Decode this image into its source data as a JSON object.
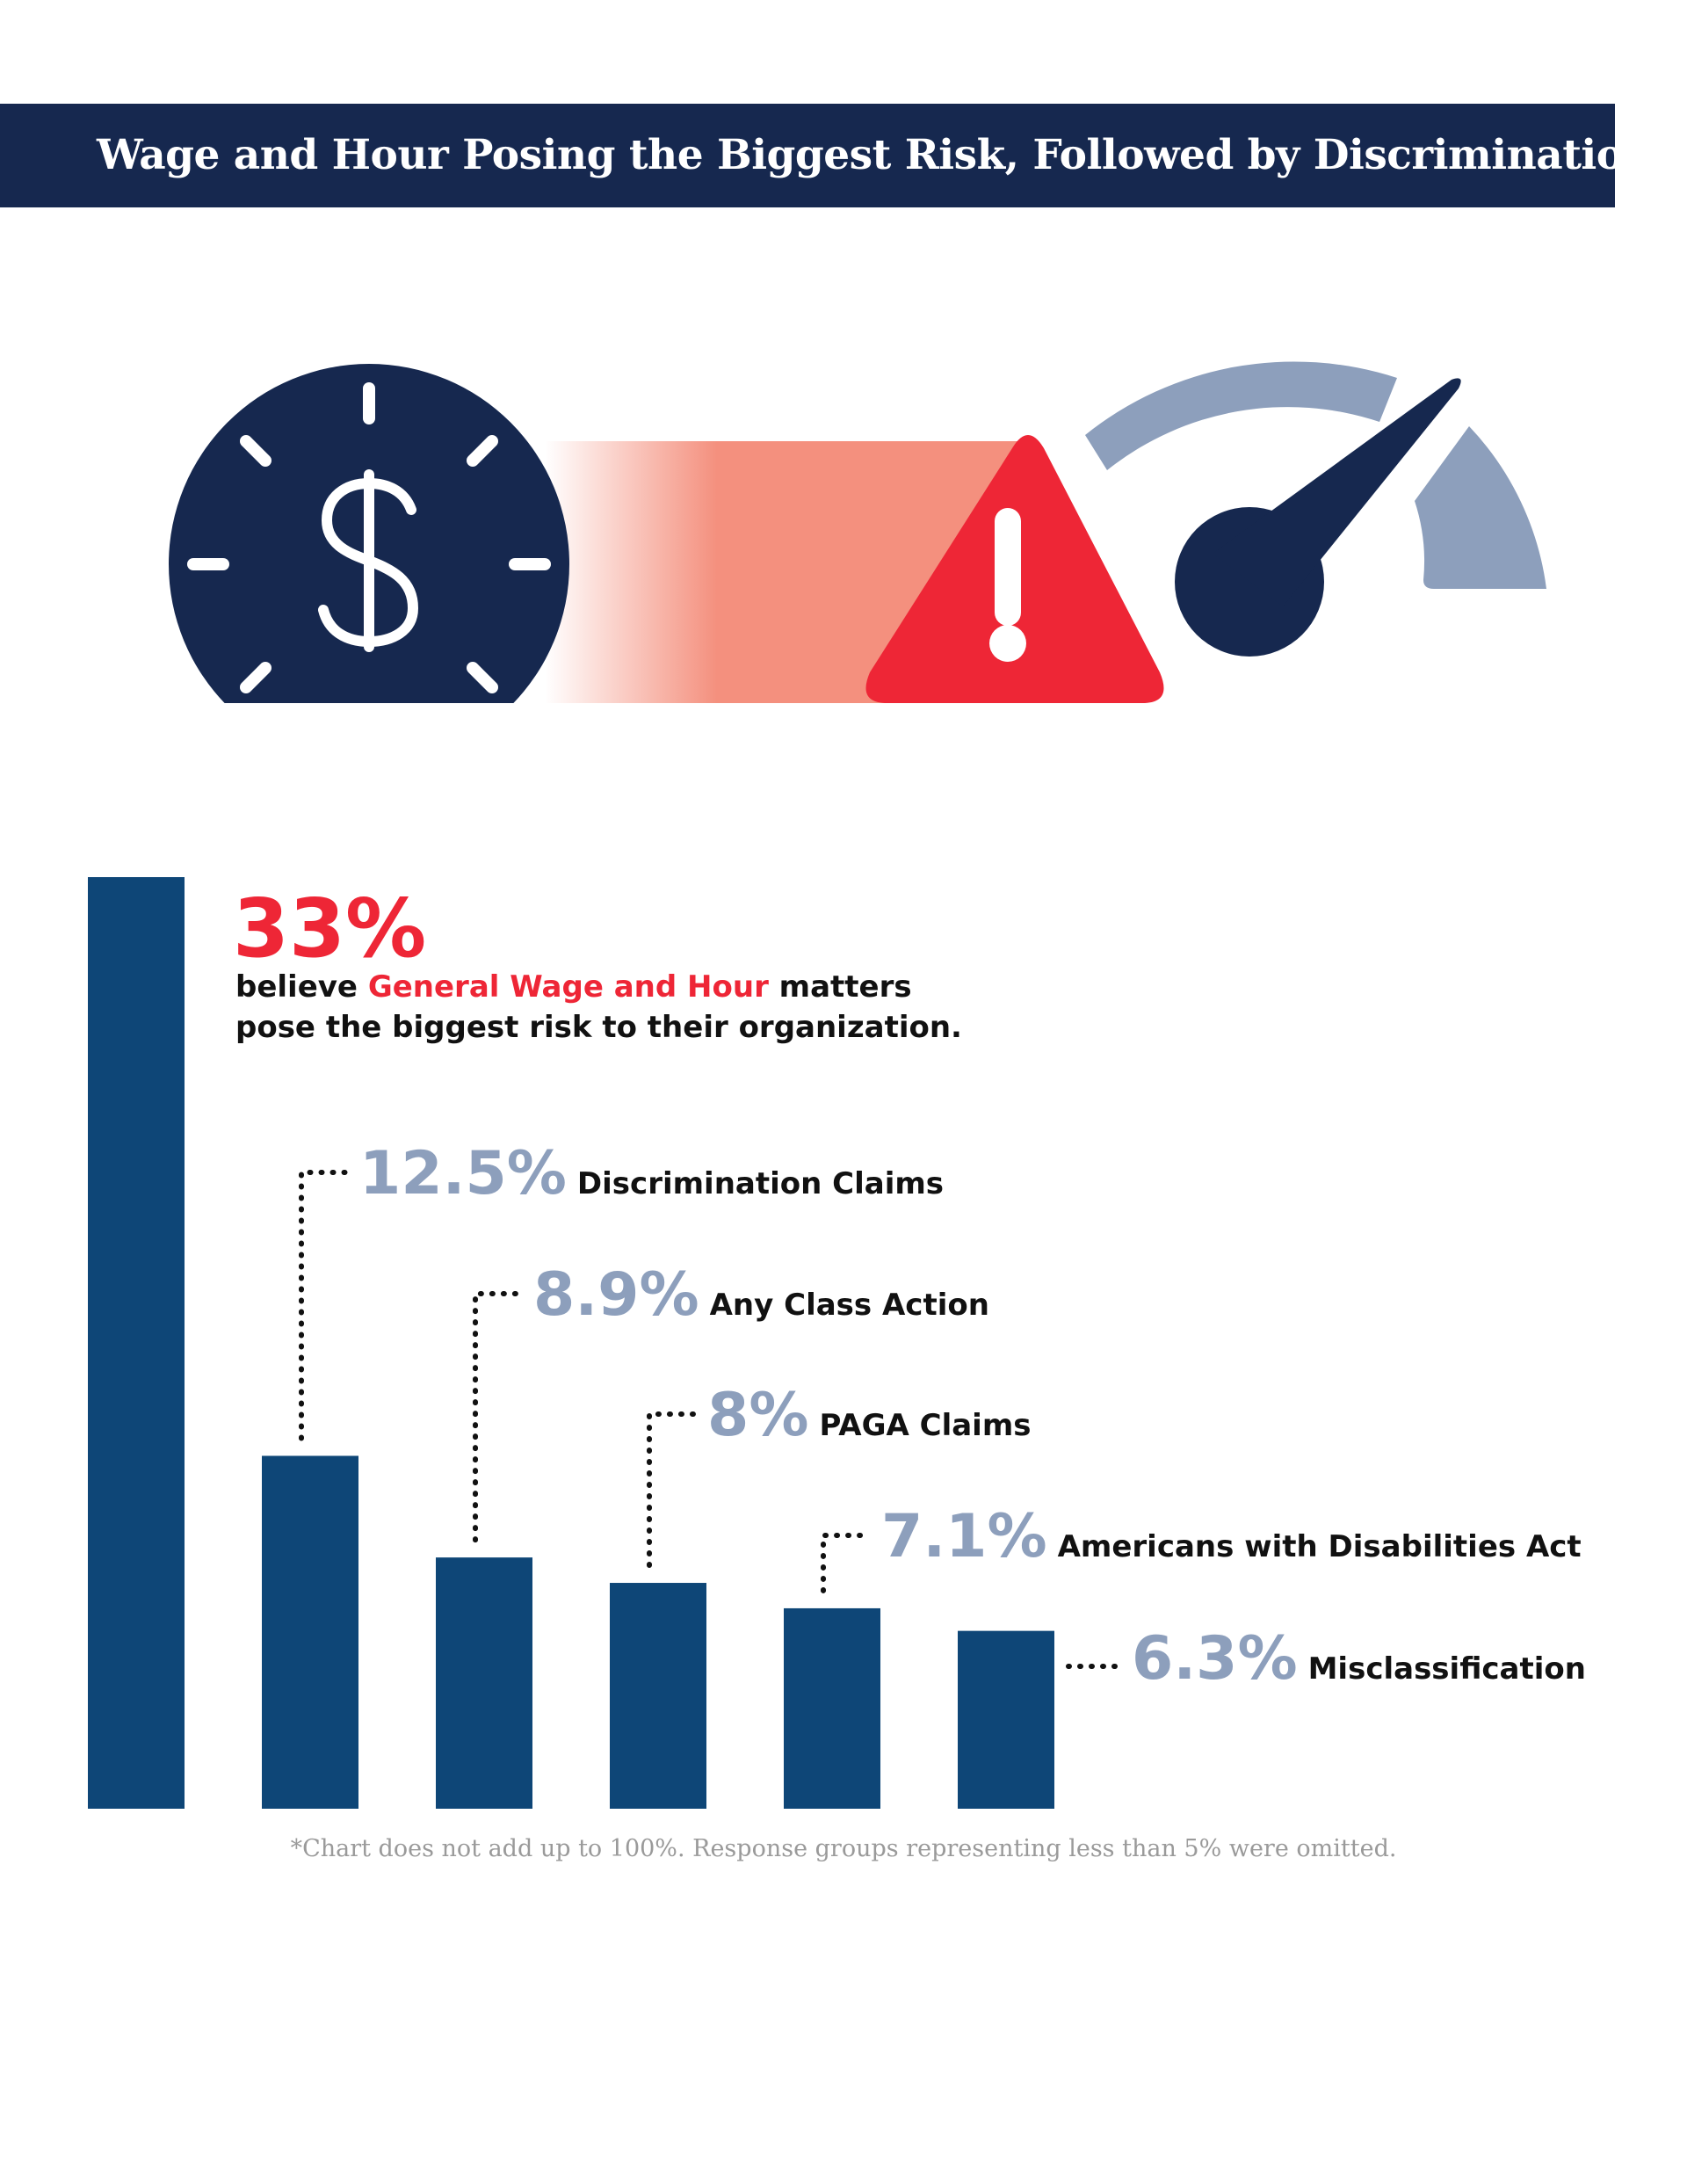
{
  "header": {
    "title": "Wage and Hour Posing the Biggest Risk, Followed by Discrimination"
  },
  "icons": {
    "clock": "dollar-clock-icon",
    "warning": "warning-triangle-icon",
    "gauge": "speedometer-gauge-icon"
  },
  "colors": {
    "navy": "#16284f",
    "bar": "#0e4677",
    "red": "#ee2636",
    "salmon": "#f4907e",
    "slate": "#8d9fbc"
  },
  "callout": {
    "pct": "33%",
    "line1_pre": "believe ",
    "line1_highlight": "General Wage and Hour",
    "line1_post": " matters",
    "line2": "pose the biggest risk to their organization."
  },
  "chart_data": {
    "type": "bar",
    "categories": [
      "General Wage and Hour",
      "Discrimination Claims",
      "Any Class Action",
      "PAGA Claims",
      "Americans with Disabilities Act",
      "Misclassification"
    ],
    "values": [
      33,
      12.5,
      8.9,
      8,
      7.1,
      6.3
    ],
    "value_labels": [
      "33%",
      "12.5%",
      "8.9%",
      "8%",
      "7.1%",
      "6.3%"
    ],
    "ylim": [
      0,
      33
    ],
    "legend": "none",
    "grid": false
  },
  "footnote": "*Chart does not add up to 100%. Response groups representing less than 5% were omitted."
}
